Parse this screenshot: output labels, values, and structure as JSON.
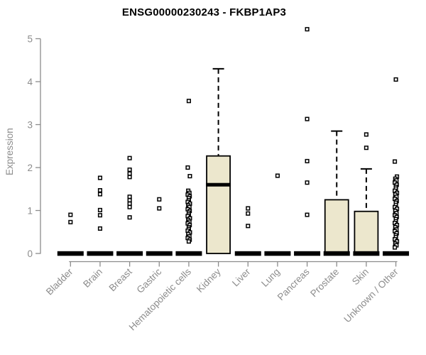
{
  "title": "ENSG00000230243 - FKBP1AP3",
  "colors": {
    "box_fill": "#ece7cd",
    "box_border": "#000000",
    "median": "#000000",
    "outlier_stroke": "#000000",
    "outlier_fill": "#ffffff",
    "axis": "#8c8c8c",
    "title_color": "#000000"
  },
  "chart_data": {
    "type": "boxplot",
    "title": "ENSG00000230243 - FKBP1AP3",
    "xlabel": "",
    "ylabel": "Expression",
    "ylim": [
      0,
      5
    ],
    "yticks": [
      0,
      1,
      2,
      3,
      4,
      5
    ],
    "grid": false,
    "legend": false,
    "categories": [
      "Bladder",
      "Brain",
      "Breast",
      "Gastric",
      "Hematopoietic cells",
      "Kidney",
      "Liver",
      "Lung",
      "Pancreas",
      "Prostate",
      "Skin",
      "Unknown / Other"
    ],
    "boxes": [
      {
        "category": "Bladder",
        "q1": 0,
        "median": 0,
        "q3": 0,
        "whisker_low": 0,
        "whisker_high": 0,
        "jitter": false,
        "outliers": [
          0.9,
          0.73
        ]
      },
      {
        "category": "Brain",
        "q1": 0,
        "median": 0,
        "q3": 0,
        "whisker_low": 0,
        "whisker_high": 0,
        "jitter": false,
        "outliers": [
          1.76,
          1.47,
          1.38,
          1.01,
          0.89,
          0.58
        ]
      },
      {
        "category": "Breast",
        "q1": 0,
        "median": 0,
        "q3": 0,
        "whisker_low": 0,
        "whisker_high": 0,
        "jitter": false,
        "outliers": [
          2.22,
          1.95,
          1.86,
          1.78,
          1.32,
          1.24,
          1.16,
          1.08,
          0.84
        ]
      },
      {
        "category": "Gastric",
        "q1": 0,
        "median": 0,
        "q3": 0,
        "whisker_low": 0,
        "whisker_high": 0,
        "jitter": false,
        "outliers": [
          1.26,
          1.05
        ]
      },
      {
        "category": "Hematopoietic cells",
        "q1": 0,
        "median": 0,
        "q3": 0,
        "whisker_low": 0,
        "whisker_high": 0,
        "jitter": true,
        "outliers": [
          3.55,
          2.0,
          1.8,
          1.46,
          1.41,
          1.37,
          1.33,
          1.29,
          1.24,
          1.2,
          1.16,
          1.12,
          1.08,
          1.03,
          0.99,
          0.95,
          0.91,
          0.87,
          0.82,
          0.78,
          0.74,
          0.7,
          0.66,
          0.61,
          0.57,
          0.53,
          0.49,
          0.45,
          0.4,
          0.36,
          0.32,
          0.28
        ]
      },
      {
        "category": "Kidney",
        "q1": 0,
        "median": 1.6,
        "q3": 2.27,
        "whisker_low": 0,
        "whisker_high": 4.3,
        "jitter": false,
        "outliers": []
      },
      {
        "category": "Liver",
        "q1": 0,
        "median": 0,
        "q3": 0,
        "whisker_low": 0,
        "whisker_high": 0,
        "jitter": false,
        "outliers": [
          1.05,
          0.93,
          0.64
        ]
      },
      {
        "category": "Lung",
        "q1": 0,
        "median": 0,
        "q3": 0,
        "whisker_low": 0,
        "whisker_high": 0,
        "jitter": false,
        "outliers": [
          1.81
        ]
      },
      {
        "category": "Pancreas",
        "q1": 0,
        "median": 0,
        "q3": 0,
        "whisker_low": 0,
        "whisker_high": 0,
        "jitter": false,
        "outliers": [
          5.22,
          3.13,
          2.15,
          1.65,
          0.9
        ]
      },
      {
        "category": "Prostate",
        "q1": 0,
        "median": 0,
        "q3": 1.25,
        "whisker_low": 0,
        "whisker_high": 2.85,
        "jitter": false,
        "outliers": []
      },
      {
        "category": "Skin",
        "q1": 0,
        "median": 0,
        "q3": 0.98,
        "whisker_low": 0,
        "whisker_high": 1.97,
        "jitter": false,
        "outliers": [
          2.77,
          2.46
        ]
      },
      {
        "category": "Unknown / Other",
        "q1": 0,
        "median": 0,
        "q3": 0,
        "whisker_low": 0,
        "whisker_high": 0,
        "jitter": true,
        "outliers": [
          4.05,
          2.14,
          1.79,
          1.74,
          1.7,
          1.65,
          1.6,
          1.55,
          1.51,
          1.46,
          1.41,
          1.37,
          1.32,
          1.27,
          1.22,
          1.18,
          1.13,
          1.08,
          1.04,
          0.99,
          0.94,
          0.89,
          0.85,
          0.8,
          0.75,
          0.71,
          0.66,
          0.61,
          0.56,
          0.52,
          0.47,
          0.42,
          0.38,
          0.33,
          0.28,
          0.23,
          0.19,
          0.14
        ]
      }
    ]
  }
}
